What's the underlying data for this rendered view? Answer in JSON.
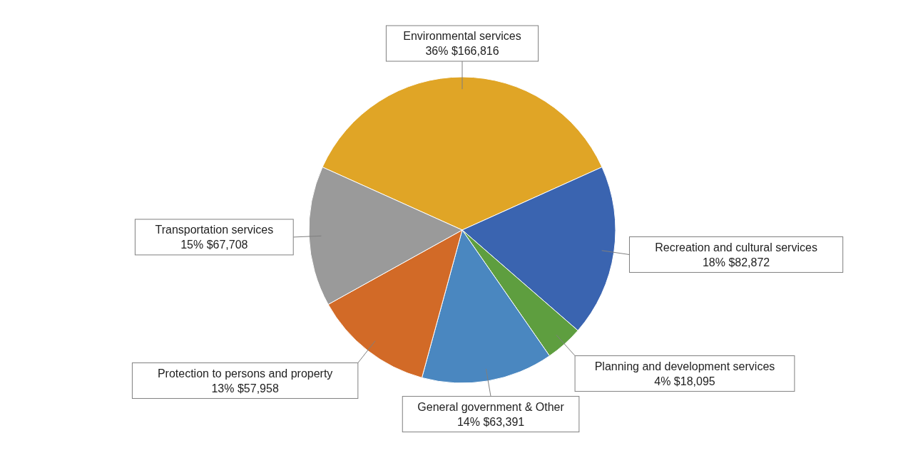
{
  "chart_data": {
    "type": "pie",
    "categories": [
      "Environmental services",
      "Recreation and cultural services",
      "Planning and development services",
      "General government & Other",
      "Protection to persons and property",
      "Transportation services"
    ],
    "values": [
      166816,
      82872,
      18095,
      63391,
      57958,
      67708
    ],
    "value_labels": [
      "36% $166,816",
      "18% $82,872",
      "4% $18,095",
      "14% $63,391",
      "13% $57,958",
      "15% $67,708"
    ],
    "colors": [
      "#e0a526",
      "#3a64b0",
      "#5e9e3f",
      "#4a87c0",
      "#d26a27",
      "#9a9a9a"
    ]
  }
}
